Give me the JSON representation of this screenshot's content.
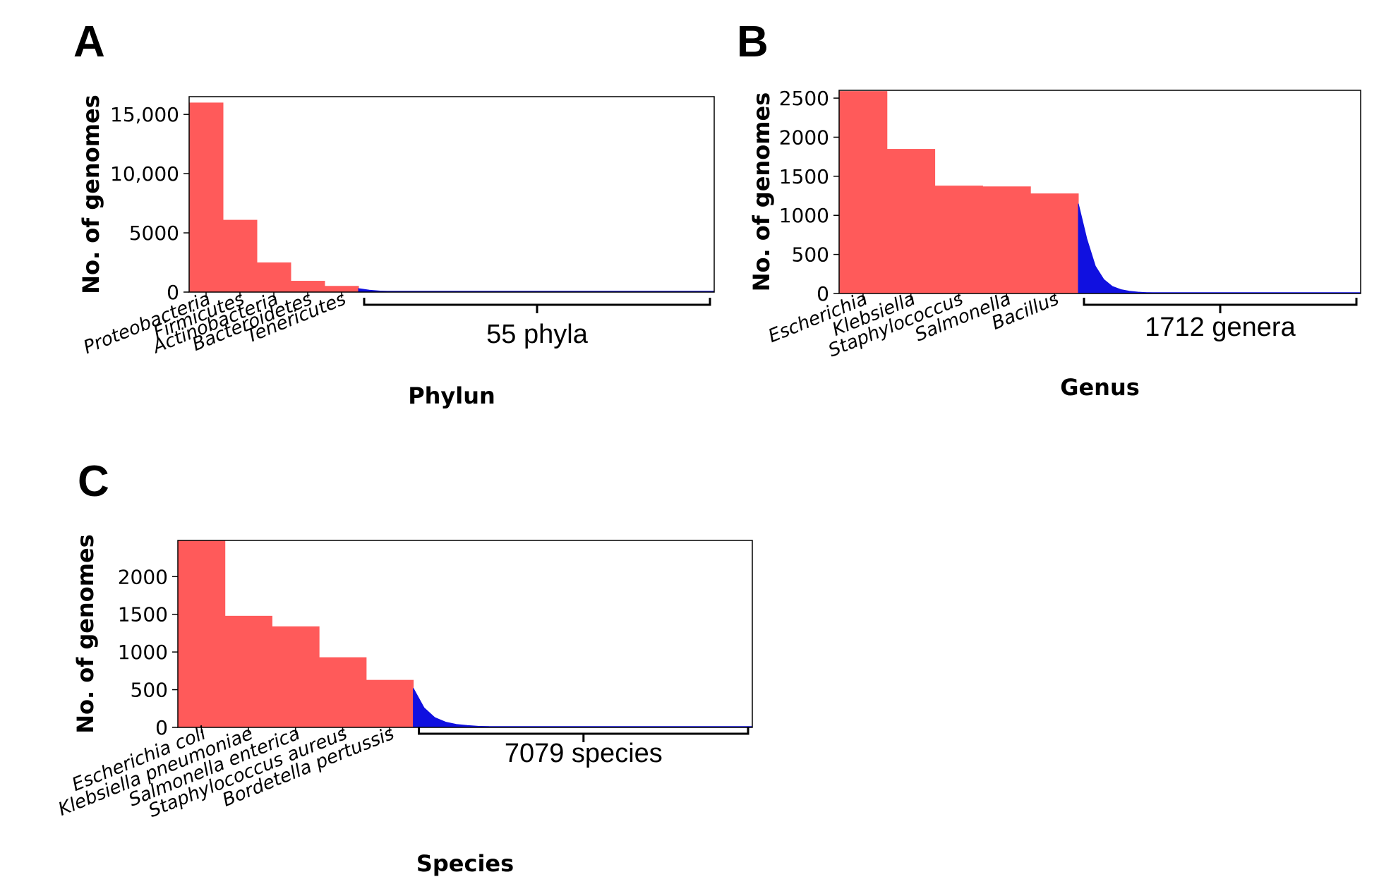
{
  "colors": {
    "major": "#ff5a5a",
    "minor": "#1010e0",
    "axis": "#000000"
  },
  "chart_data": [
    {
      "type": "bar",
      "panel_label": "A",
      "title": "",
      "xlabel": "Phylun",
      "ylabel": "No. of genomes",
      "ylim": [
        0,
        16500
      ],
      "yticks": [
        0,
        5000,
        10000,
        15000
      ],
      "ytick_labels": [
        "0",
        "5000",
        "10,000",
        "15,000"
      ],
      "categories": [
        "Proteobacteria",
        "Firmicutes",
        "Actinobacteria",
        "Bacteroidetes",
        "Tenericutes"
      ],
      "values": [
        16000,
        6100,
        2500,
        950,
        520
      ],
      "tail": {
        "values": [
          300,
          160,
          90,
          50,
          28,
          15
        ],
        "label": "55 phyla"
      },
      "total_slots": 15.5,
      "grid": false
    },
    {
      "type": "bar",
      "panel_label": "B",
      "title": "",
      "xlabel": "Genus",
      "ylabel": "No. of genomes",
      "ylim": [
        0,
        2600
      ],
      "yticks": [
        0,
        500,
        1000,
        1500,
        2000,
        2500
      ],
      "ytick_labels": [
        "0",
        "500",
        "1000",
        "1500",
        "2000",
        "2500"
      ],
      "categories": [
        "Escherichia",
        "Klebsiella",
        "Staphylococcus",
        "Salmonella",
        "Bacillus"
      ],
      "values": [
        2590,
        1850,
        1380,
        1370,
        1280
      ],
      "tail": {
        "values": [
          1150,
          700,
          350,
          180,
          90,
          50,
          30,
          18,
          12,
          8
        ],
        "label": "1712 genera"
      },
      "total_slots": 10.9,
      "grid": false
    },
    {
      "type": "bar",
      "panel_label": "C",
      "title": "",
      "xlabel": "Species",
      "ylabel": "No. of genomes",
      "ylim": [
        0,
        2480
      ],
      "yticks": [
        0,
        500,
        1000,
        1500,
        2000
      ],
      "ytick_labels": [
        "0",
        "500",
        "1000",
        "1500",
        "2000"
      ],
      "categories": [
        "Escherichia coli",
        "Klebsiella pneumoniae",
        "Salmonella enterica",
        "Staphylococcus aureus",
        "Bordetella pertussis"
      ],
      "values": [
        2480,
        1480,
        1340,
        930,
        630
      ],
      "tail": {
        "values": [
          520,
          260,
          130,
          70,
          40,
          25,
          15,
          10
        ],
        "label": "7079 species"
      },
      "total_slots": 12.2,
      "grid": false
    }
  ]
}
